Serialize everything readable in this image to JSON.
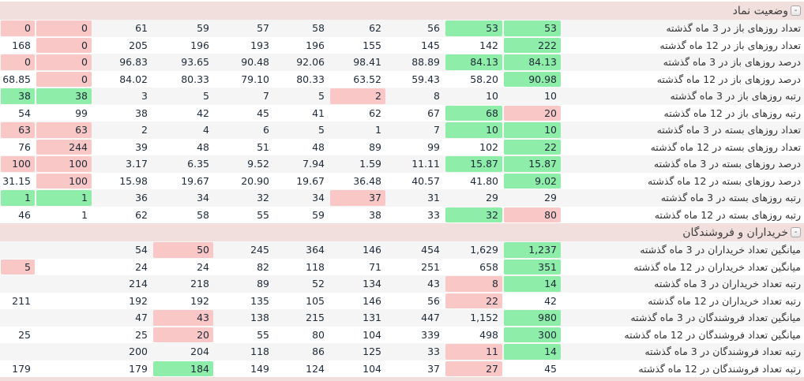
{
  "colors": {
    "positive_highlight": "#8eeda8",
    "negative_highlight": "#f9c7c5",
    "section_header_bg": "#f0dfdc",
    "row_alt_bg": "#f5f5f5",
    "value_text": "#1e2a38"
  },
  "sections": [
    {
      "title": "وضعیت نماد",
      "collapse_label": "-",
      "rows": [
        {
          "label": "تعداد روزهای باز در 3 ماه گذشته",
          "cells": [
            [
              "0",
              "r"
            ],
            [
              "0",
              "r"
            ],
            [
              "61",
              ""
            ],
            [
              "59",
              ""
            ],
            [
              "57",
              ""
            ],
            [
              "58",
              ""
            ],
            [
              "62",
              ""
            ],
            [
              "56",
              ""
            ],
            [
              "53",
              "g"
            ],
            [
              "53",
              "g"
            ]
          ]
        },
        {
          "label": "تعداد روزهای باز در 12 ماه گذشته",
          "cells": [
            [
              "168",
              ""
            ],
            [
              "0",
              "r"
            ],
            [
              "205",
              ""
            ],
            [
              "196",
              ""
            ],
            [
              "193",
              ""
            ],
            [
              "196",
              ""
            ],
            [
              "155",
              ""
            ],
            [
              "145",
              ""
            ],
            [
              "142",
              ""
            ],
            [
              "222",
              "g"
            ]
          ]
        },
        {
          "label": "درصد روزهای باز در 3 ماه گذشته",
          "cells": [
            [
              "0",
              "r"
            ],
            [
              "0",
              "r"
            ],
            [
              "96.83",
              ""
            ],
            [
              "93.65",
              ""
            ],
            [
              "90.48",
              ""
            ],
            [
              "92.06",
              ""
            ],
            [
              "98.41",
              ""
            ],
            [
              "88.89",
              ""
            ],
            [
              "84.13",
              "g"
            ],
            [
              "84.13",
              "g"
            ]
          ]
        },
        {
          "label": "درصد روزهای باز در 12 ماه گذشته",
          "cells": [
            [
              "68.85",
              ""
            ],
            [
              "0",
              "r"
            ],
            [
              "84.02",
              ""
            ],
            [
              "80.33",
              ""
            ],
            [
              "79.10",
              ""
            ],
            [
              "80.33",
              ""
            ],
            [
              "63.52",
              ""
            ],
            [
              "59.43",
              ""
            ],
            [
              "58.20",
              ""
            ],
            [
              "90.98",
              "g"
            ]
          ]
        },
        {
          "label": "رتبه روزهای باز در 3 ماه گذشته",
          "cells": [
            [
              "38",
              "g"
            ],
            [
              "38",
              "g"
            ],
            [
              "3",
              ""
            ],
            [
              "5",
              ""
            ],
            [
              "7",
              ""
            ],
            [
              "5",
              ""
            ],
            [
              "2",
              "r"
            ],
            [
              "8",
              ""
            ],
            [
              "10",
              ""
            ],
            [
              "10",
              ""
            ]
          ]
        },
        {
          "label": "رتبه روزهای باز در 12 ماه گذشته",
          "cells": [
            [
              "54",
              ""
            ],
            [
              "99",
              ""
            ],
            [
              "38",
              ""
            ],
            [
              "42",
              ""
            ],
            [
              "45",
              ""
            ],
            [
              "41",
              ""
            ],
            [
              "62",
              ""
            ],
            [
              "67",
              ""
            ],
            [
              "68",
              "g"
            ],
            [
              "20",
              "r"
            ]
          ]
        },
        {
          "label": "تعداد روزهای بسته در 3 ماه گذشته",
          "cells": [
            [
              "63",
              "r"
            ],
            [
              "63",
              "r"
            ],
            [
              "2",
              ""
            ],
            [
              "4",
              ""
            ],
            [
              "6",
              ""
            ],
            [
              "5",
              ""
            ],
            [
              "1",
              ""
            ],
            [
              "7",
              ""
            ],
            [
              "10",
              "g"
            ],
            [
              "10",
              "g"
            ]
          ]
        },
        {
          "label": "تعداد روزهای بسته در 12 ماه گذشته",
          "cells": [
            [
              "76",
              ""
            ],
            [
              "244",
              "r"
            ],
            [
              "39",
              ""
            ],
            [
              "48",
              ""
            ],
            [
              "51",
              ""
            ],
            [
              "48",
              ""
            ],
            [
              "89",
              ""
            ],
            [
              "99",
              ""
            ],
            [
              "102",
              ""
            ],
            [
              "22",
              "g"
            ]
          ]
        },
        {
          "label": "درصد روزهای بسته در 3 ماه گذشته",
          "cells": [
            [
              "100",
              "r"
            ],
            [
              "100",
              "r"
            ],
            [
              "3.17",
              ""
            ],
            [
              "6.35",
              ""
            ],
            [
              "9.52",
              ""
            ],
            [
              "7.94",
              ""
            ],
            [
              "1.59",
              ""
            ],
            [
              "11.11",
              ""
            ],
            [
              "15.87",
              "g"
            ],
            [
              "15.87",
              "g"
            ]
          ]
        },
        {
          "label": "درصد روزهای بسته در 12 ماه گذشته",
          "cells": [
            [
              "31.15",
              ""
            ],
            [
              "100",
              "r"
            ],
            [
              "15.98",
              ""
            ],
            [
              "19.67",
              ""
            ],
            [
              "20.90",
              ""
            ],
            [
              "19.67",
              ""
            ],
            [
              "36.48",
              ""
            ],
            [
              "40.57",
              ""
            ],
            [
              "41.80",
              ""
            ],
            [
              "9.02",
              "g"
            ]
          ]
        },
        {
          "label": "رتبه روزهای بسته در 3 ماه گذشته",
          "cells": [
            [
              "1",
              "g"
            ],
            [
              "1",
              "g"
            ],
            [
              "36",
              ""
            ],
            [
              "34",
              ""
            ],
            [
              "32",
              ""
            ],
            [
              "34",
              ""
            ],
            [
              "37",
              "r"
            ],
            [
              "31",
              ""
            ],
            [
              "29",
              ""
            ],
            [
              "29",
              ""
            ]
          ]
        },
        {
          "label": "رتبه روزهای بسته در 12 ماه گذشته",
          "cells": [
            [
              "46",
              ""
            ],
            [
              "1",
              ""
            ],
            [
              "62",
              ""
            ],
            [
              "58",
              ""
            ],
            [
              "55",
              ""
            ],
            [
              "59",
              ""
            ],
            [
              "38",
              ""
            ],
            [
              "33",
              ""
            ],
            [
              "32",
              "g"
            ],
            [
              "80",
              "r"
            ]
          ]
        }
      ]
    },
    {
      "title": "خریداران و فروشندگان",
      "collapse_label": "-",
      "rows": [
        {
          "label": "میانگین تعداد خریداران در 3 ماه گذشته",
          "cells": [
            [
              "",
              ""
            ],
            [
              "",
              ""
            ],
            [
              "54",
              ""
            ],
            [
              "50",
              "r"
            ],
            [
              "245",
              ""
            ],
            [
              "364",
              ""
            ],
            [
              "146",
              ""
            ],
            [
              "454",
              ""
            ],
            [
              "1,629",
              ""
            ],
            [
              "1,237",
              "g"
            ]
          ]
        },
        {
          "label": "میانگین تعداد خریداران در 12 ماه گذشته",
          "cells": [
            [
              "5",
              "r"
            ],
            [
              "",
              ""
            ],
            [
              "24",
              ""
            ],
            [
              "24",
              ""
            ],
            [
              "82",
              ""
            ],
            [
              "118",
              ""
            ],
            [
              "71",
              ""
            ],
            [
              "251",
              ""
            ],
            [
              "658",
              ""
            ],
            [
              "351",
              "g"
            ]
          ]
        },
        {
          "label": "رتبه تعداد خریداران در 3 ماه گذشته",
          "cells": [
            [
              "",
              ""
            ],
            [
              "",
              ""
            ],
            [
              "214",
              ""
            ],
            [
              "218",
              ""
            ],
            [
              "89",
              ""
            ],
            [
              "52",
              ""
            ],
            [
              "134",
              ""
            ],
            [
              "43",
              ""
            ],
            [
              "8",
              "r"
            ],
            [
              "14",
              "g"
            ]
          ]
        },
        {
          "label": "رتبه تعداد خریداران در 12 ماه گذشته",
          "cells": [
            [
              "211",
              ""
            ],
            [
              "",
              ""
            ],
            [
              "192",
              ""
            ],
            [
              "192",
              ""
            ],
            [
              "135",
              ""
            ],
            [
              "105",
              ""
            ],
            [
              "146",
              ""
            ],
            [
              "56",
              ""
            ],
            [
              "22",
              "r"
            ],
            [
              "42",
              ""
            ]
          ]
        },
        {
          "label": "میانگین تعداد فروشندگان در 3 ماه گذشته",
          "cells": [
            [
              "",
              ""
            ],
            [
              "",
              ""
            ],
            [
              "47",
              ""
            ],
            [
              "43",
              "r"
            ],
            [
              "138",
              ""
            ],
            [
              "215",
              ""
            ],
            [
              "131",
              ""
            ],
            [
              "447",
              ""
            ],
            [
              "1,152",
              ""
            ],
            [
              "980",
              "g"
            ]
          ]
        },
        {
          "label": "میانگین تعداد فروشندگان در 12 ماه گذشته",
          "cells": [
            [
              "25",
              ""
            ],
            [
              "",
              ""
            ],
            [
              "25",
              ""
            ],
            [
              "20",
              "r"
            ],
            [
              "55",
              ""
            ],
            [
              "80",
              ""
            ],
            [
              "104",
              ""
            ],
            [
              "339",
              ""
            ],
            [
              "498",
              ""
            ],
            [
              "300",
              "g"
            ]
          ]
        },
        {
          "label": "رتبه تعداد فروشندگان در 3 ماه گذشته",
          "cells": [
            [
              "",
              ""
            ],
            [
              "",
              ""
            ],
            [
              "200",
              ""
            ],
            [
              "204",
              ""
            ],
            [
              "118",
              ""
            ],
            [
              "86",
              ""
            ],
            [
              "125",
              ""
            ],
            [
              "33",
              ""
            ],
            [
              "11",
              "r"
            ],
            [
              "14",
              "g"
            ]
          ]
        },
        {
          "label": "رتبه تعداد فروشندگان در 12 ماه گذشته",
          "cells": [
            [
              "179",
              ""
            ],
            [
              "",
              ""
            ],
            [
              "179",
              ""
            ],
            [
              "184",
              "g"
            ],
            [
              "149",
              ""
            ],
            [
              "124",
              ""
            ],
            [
              "104",
              ""
            ],
            [
              "37",
              ""
            ],
            [
              "27",
              "r"
            ],
            [
              "45",
              ""
            ]
          ]
        }
      ]
    }
  ]
}
